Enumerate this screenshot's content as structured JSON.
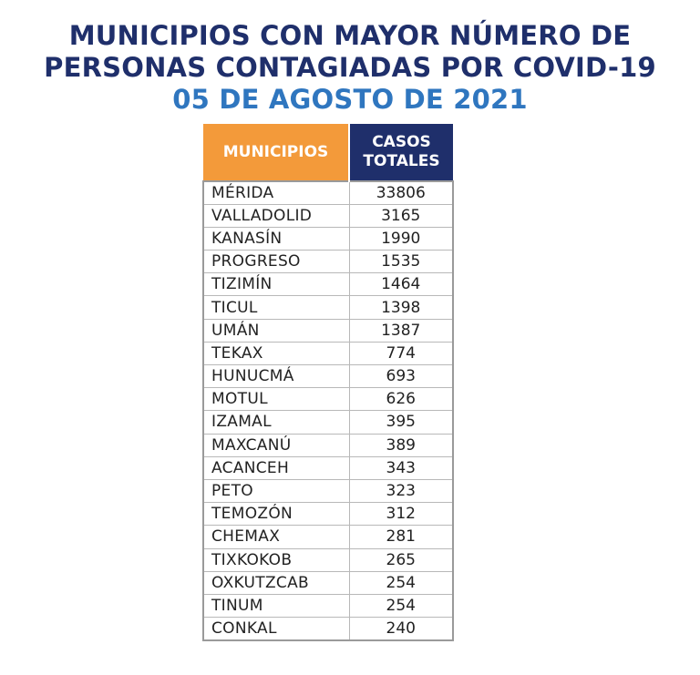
{
  "title": {
    "line1": "MUNICIPIOS CON MAYOR NÚMERO DE",
    "line2": "PERSONAS CONTAGIADAS POR COVID-19",
    "date": "05 DE AGOSTO DE 2021"
  },
  "colors": {
    "title_dark_blue": "#1f2f6b",
    "date_blue": "#2f76bf",
    "header_orange": "#f39a3a",
    "header_navy": "#1f2f6b"
  },
  "table": {
    "headers": {
      "municipios": "MUNICIPIOS",
      "casos_line1": "CASOS",
      "casos_line2": "TOTALES"
    },
    "rows": [
      {
        "municipio": "MÉRIDA",
        "casos": "33806"
      },
      {
        "municipio": "VALLADOLID",
        "casos": "3165"
      },
      {
        "municipio": "KANASÍN",
        "casos": "1990"
      },
      {
        "municipio": "PROGRESO",
        "casos": "1535"
      },
      {
        "municipio": "TIZIMÍN",
        "casos": "1464"
      },
      {
        "municipio": "TICUL",
        "casos": "1398"
      },
      {
        "municipio": "UMÁN",
        "casos": "1387"
      },
      {
        "municipio": "TEKAX",
        "casos": "774"
      },
      {
        "municipio": "HUNUCMÁ",
        "casos": "693"
      },
      {
        "municipio": "MOTUL",
        "casos": "626"
      },
      {
        "municipio": "IZAMAL",
        "casos": "395"
      },
      {
        "municipio": "MAXCANÚ",
        "casos": "389"
      },
      {
        "municipio": "ACANCEH",
        "casos": "343"
      },
      {
        "municipio": "PETO",
        "casos": "323"
      },
      {
        "municipio": "TEMOZÓN",
        "casos": "312"
      },
      {
        "municipio": "CHEMAX",
        "casos": "281"
      },
      {
        "municipio": "TIXKOKOB",
        "casos": "265"
      },
      {
        "municipio": "OXKUTZCAB",
        "casos": "254"
      },
      {
        "municipio": "TINUM",
        "casos": "254"
      },
      {
        "municipio": "CONKAL",
        "casos": "240"
      }
    ]
  }
}
